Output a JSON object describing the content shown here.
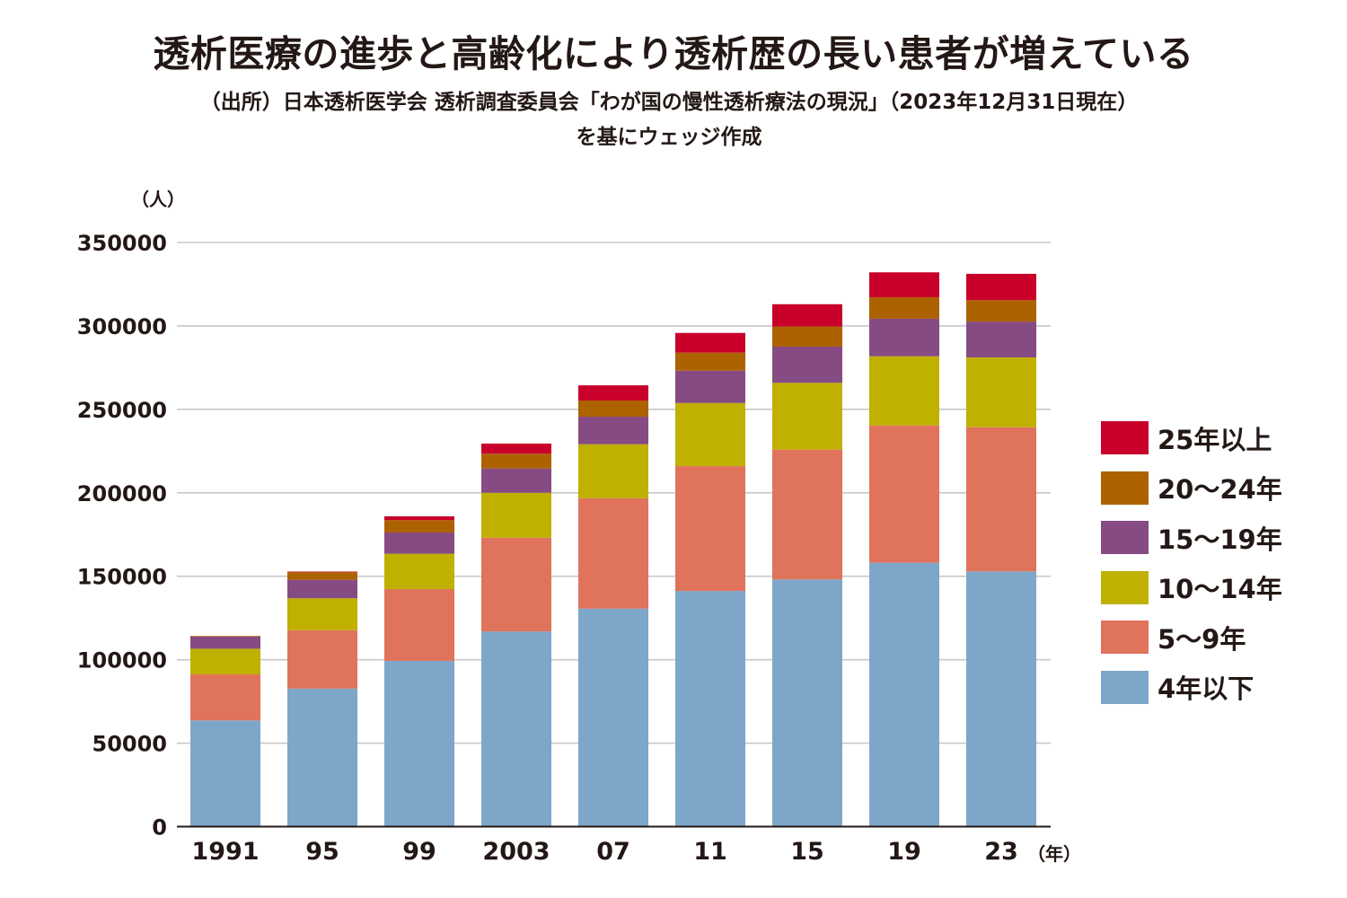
{
  "header": {
    "title": "透析医療の進歩と高齢化により透析歴の長い患者が増えている",
    "source_line1": "（出所）日本透析医学会 透析調査委員会「わが国の慢性透析療法の現況」（2023年12月31日現在）",
    "source_line2": "を基にウェッジ作成"
  },
  "chart_data": {
    "type": "bar",
    "stacked": true,
    "title": "透析医療の進歩と高齢化により透析歴の長い患者が増えている",
    "ylabel": "（人）",
    "xlabel": "（年）",
    "ylim": [
      0,
      350000
    ],
    "yticks": [
      0,
      50000,
      100000,
      150000,
      200000,
      250000,
      300000,
      350000
    ],
    "ytick_labels": [
      "0",
      "50000",
      "100000",
      "150000",
      "200000",
      "250000",
      "300000",
      "350000"
    ],
    "grid": true,
    "legend_position": "right",
    "categories": [
      "1991",
      "95",
      "99",
      "2003",
      "07",
      "11",
      "15",
      "19",
      "23"
    ],
    "series": [
      {
        "name": "4年以下",
        "color": "#7ea6c9",
        "values": [
          63600,
          82700,
          99300,
          116900,
          130600,
          141200,
          148100,
          158100,
          152900
        ]
      },
      {
        "name": "5〜9年",
        "color": "#e0735c",
        "values": [
          27600,
          35000,
          43000,
          56200,
          66100,
          74800,
          77800,
          82300,
          86400
        ]
      },
      {
        "name": "10〜14年",
        "color": "#c0b000",
        "values": [
          15400,
          19100,
          21200,
          26900,
          32400,
          37800,
          40000,
          41400,
          41800
        ]
      },
      {
        "name": "15〜19年",
        "color": "#864b82",
        "values": [
          7200,
          11100,
          12700,
          14600,
          16500,
          19400,
          21700,
          22500,
          21500
        ]
      },
      {
        "name": "20〜24年",
        "color": "#ad6200",
        "values": [
          400,
          4600,
          7400,
          8800,
          9700,
          10800,
          12000,
          12900,
          12800
        ]
      },
      {
        "name": "25年以上",
        "color": "#c8002a",
        "values": [
          0,
          300,
          2300,
          6100,
          9100,
          11800,
          13400,
          14900,
          15800
        ]
      }
    ]
  },
  "legend": {
    "items": [
      {
        "label": "25年以上",
        "color": "#c8002a"
      },
      {
        "label": "20〜24年",
        "color": "#ad6200"
      },
      {
        "label": "15〜19年",
        "color": "#864b82"
      },
      {
        "label": "10〜14年",
        "color": "#c0b000"
      },
      {
        "label": "5〜9年",
        "color": "#e0735c"
      },
      {
        "label": "4年以下",
        "color": "#7ea6c9"
      }
    ]
  }
}
